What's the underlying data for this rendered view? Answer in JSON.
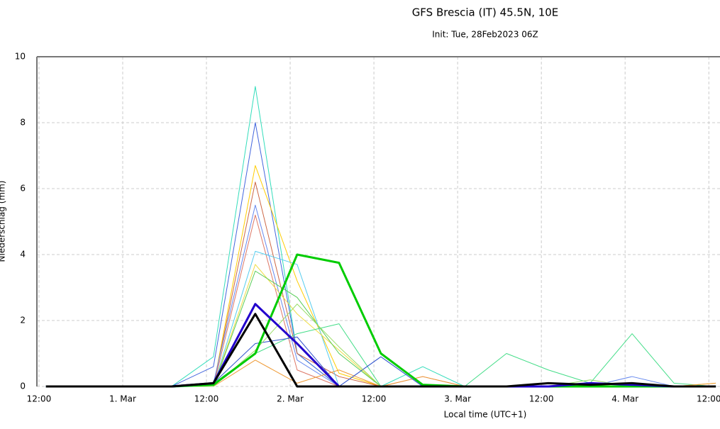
{
  "chart_data": {
    "type": "line",
    "title": "GFS Brescia (IT) 45.5N, 10E",
    "subtitle": "Init: Tue, 28Feb2023 06Z",
    "x_label": "Local time (UTC+1)",
    "y_label": "Niederschlag (mm)",
    "xlim": [
      -0.3,
      97.6
    ],
    "ylim": [
      0,
      10
    ],
    "xticks": [
      {
        "value": 0,
        "label": "12:00"
      },
      {
        "value": 12,
        "label": "1. Mar"
      },
      {
        "value": 24,
        "label": "12:00"
      },
      {
        "value": 36,
        "label": "2. Mar"
      },
      {
        "value": 48,
        "label": "12:00"
      },
      {
        "value": 60,
        "label": "3. Mar"
      },
      {
        "value": 72,
        "label": "12:00"
      },
      {
        "value": 84,
        "label": "4. Mar"
      },
      {
        "value": 96,
        "label": "12:00"
      }
    ],
    "yticks": [
      0,
      2,
      4,
      6,
      8,
      10
    ],
    "grid": true,
    "x": [
      1,
      7,
      13,
      19,
      25,
      31,
      37,
      43,
      49,
      55,
      61,
      67,
      73,
      79,
      85,
      91,
      97
    ],
    "series": [
      {
        "color": "#33ddbb",
        "bold": false,
        "values": [
          0,
          0,
          0,
          0,
          0.9,
          9.1,
          1.0,
          0,
          0,
          0.6,
          0,
          0,
          0,
          0,
          0,
          0,
          0
        ]
      },
      {
        "color": "#4466dd",
        "bold": false,
        "values": [
          0,
          0,
          0,
          0,
          0.6,
          8.0,
          1.0,
          0,
          0,
          0,
          0,
          0,
          0,
          0,
          0,
          0,
          0
        ]
      },
      {
        "color": "#ffcc00",
        "bold": false,
        "values": [
          0,
          0,
          0,
          0,
          0,
          6.7,
          3.2,
          0.4,
          0,
          0,
          0,
          0,
          0,
          0,
          0,
          0,
          0
        ]
      },
      {
        "color": "#cc6644",
        "bold": false,
        "values": [
          0,
          0,
          0,
          0,
          0,
          6.2,
          1.0,
          0.3,
          0,
          0,
          0,
          0,
          0,
          0,
          0,
          0,
          0
        ]
      },
      {
        "color": "#6688ee",
        "bold": false,
        "values": [
          0,
          0,
          0,
          0,
          0.1,
          5.5,
          0.8,
          0,
          0.9,
          0,
          0,
          0,
          0,
          0,
          0.3,
          0,
          0
        ]
      },
      {
        "color": "#dd7766",
        "bold": false,
        "values": [
          0,
          0,
          0,
          0,
          0,
          5.2,
          0.5,
          0,
          0,
          0.3,
          0,
          0,
          0,
          0,
          0,
          0,
          0
        ]
      },
      {
        "color": "#55ccee",
        "bold": false,
        "values": [
          0,
          0,
          0,
          0,
          0,
          4.1,
          3.7,
          0,
          0,
          0,
          0,
          0,
          0,
          0,
          0,
          0,
          0
        ]
      },
      {
        "color": "#eedd44",
        "bold": false,
        "values": [
          0,
          0,
          0,
          0,
          0,
          3.7,
          2.2,
          1.1,
          0,
          0,
          0,
          0,
          0,
          0,
          0,
          0,
          0.1
        ]
      },
      {
        "color": "#55cc55",
        "bold": false,
        "values": [
          0,
          0,
          0,
          0,
          0,
          3.5,
          2.7,
          1.0,
          0,
          0,
          0,
          0,
          0,
          0,
          0,
          0,
          0
        ]
      },
      {
        "color": "#44dd88",
        "bold": false,
        "values": [
          0,
          0,
          0,
          0,
          0.1,
          1.0,
          1.6,
          1.9,
          0,
          0,
          0,
          1.0,
          0.5,
          0.1,
          1.6,
          0.1,
          0
        ]
      },
      {
        "color": "#ee9933",
        "bold": false,
        "values": [
          0,
          0,
          0,
          0,
          0,
          0.8,
          0.1,
          0.5,
          0,
          0.3,
          0,
          0,
          0,
          0,
          0,
          0,
          0.1
        ]
      },
      {
        "color": "#3355cc",
        "bold": false,
        "values": [
          0,
          0,
          0,
          0,
          0.1,
          1.3,
          1.5,
          0,
          0.9,
          0,
          0,
          0,
          0,
          0,
          0,
          0,
          0
        ]
      },
      {
        "color": "#99dd66",
        "bold": false,
        "values": [
          0,
          0,
          0,
          0,
          0,
          1.1,
          2.5,
          1.2,
          0,
          0,
          0,
          0,
          0,
          0.2,
          0,
          0,
          0
        ]
      },
      {
        "color": "#00cc00",
        "bold": true,
        "values": [
          0,
          0,
          0,
          0,
          0.05,
          1.0,
          4.0,
          3.75,
          1.0,
          0.05,
          0,
          0,
          0,
          0,
          0,
          0,
          0
        ]
      },
      {
        "color": "#2200cc",
        "bold": true,
        "values": [
          0,
          0,
          0,
          0,
          0.1,
          2.5,
          1.3,
          0,
          0,
          0,
          0,
          0,
          0,
          0.1,
          0.05,
          0,
          0
        ]
      },
      {
        "color": "#000000",
        "bold": true,
        "values": [
          0,
          0,
          0,
          0,
          0.1,
          2.2,
          0,
          0,
          0,
          0,
          0,
          0,
          0.1,
          0.05,
          0.1,
          0,
          0
        ]
      }
    ]
  }
}
